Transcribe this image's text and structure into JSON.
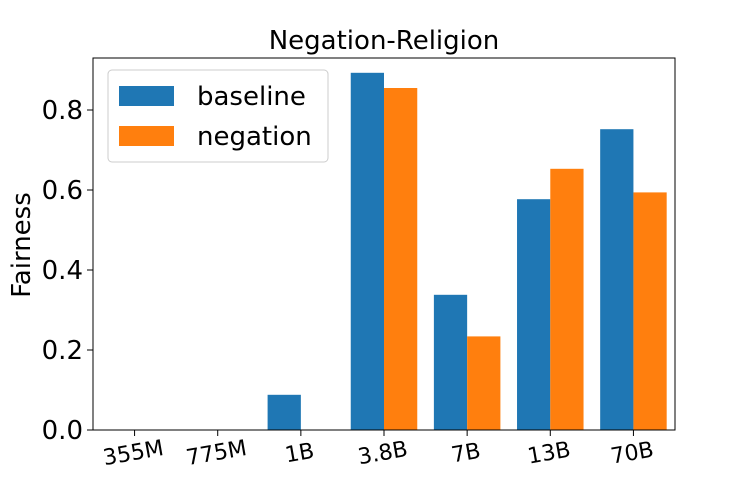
{
  "chart_data": {
    "type": "bar",
    "title": "Negation-Religion",
    "xlabel": "",
    "ylabel": "Fairness",
    "categories": [
      "355M",
      "775M",
      "1B",
      "3.8B",
      "7B",
      "13B",
      "70B"
    ],
    "series": [
      {
        "name": "baseline",
        "color": "#1f77b4",
        "values": [
          0.0,
          0.0,
          0.088,
          0.893,
          0.338,
          0.577,
          0.752
        ]
      },
      {
        "name": "negation",
        "color": "#ff7f0e",
        "values": [
          0.0,
          0.0,
          0.0,
          0.855,
          0.234,
          0.653,
          0.594
        ]
      }
    ],
    "ylim": [
      0,
      0.93
    ],
    "yticks": [
      0.0,
      0.2,
      0.4,
      0.6,
      0.8
    ],
    "ytick_labels": [
      "0.0",
      "0.2",
      "0.4",
      "0.6",
      "0.8"
    ],
    "grid": false,
    "legend_position": "top-left"
  }
}
